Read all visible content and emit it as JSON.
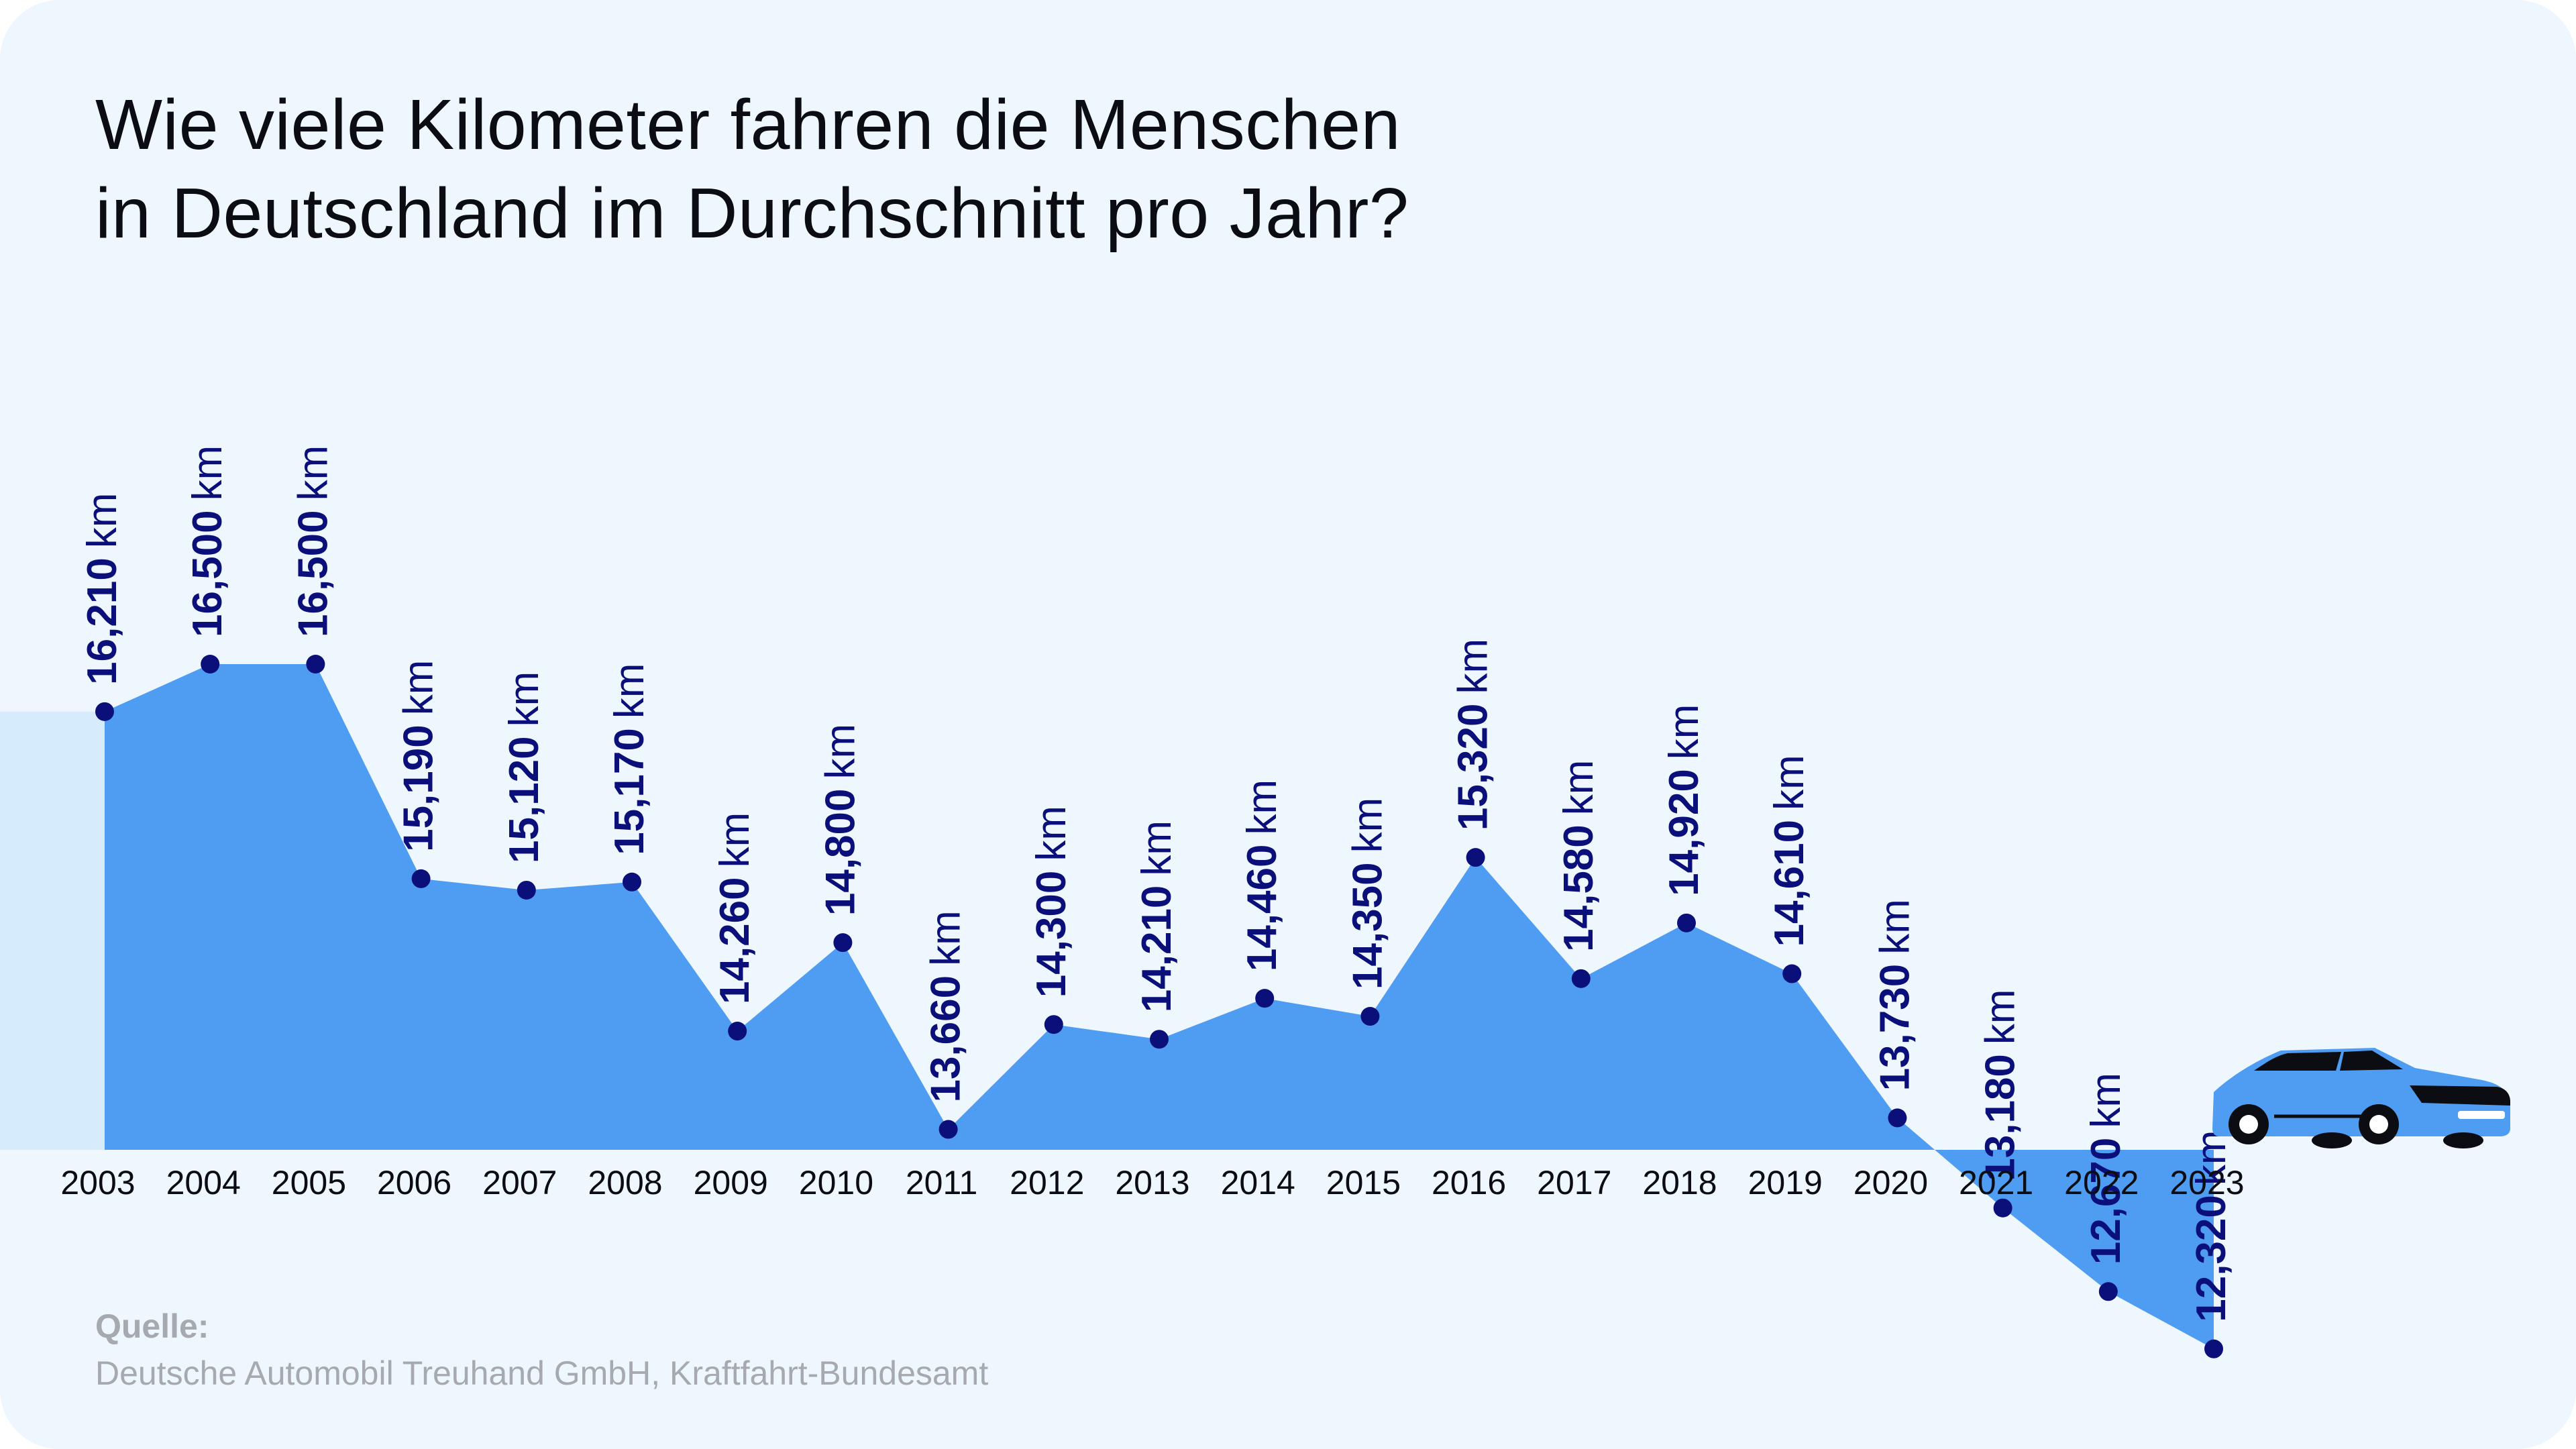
{
  "title": {
    "line1": "Wie viele Kilometer fahren die Menschen",
    "line2": "in Deutschland im Durchschnitt pro Jahr?"
  },
  "source": {
    "label": "Quelle:",
    "text": "Deutsche Automobil Treuhand GmbH, Kraftfahrt-Bundesamt"
  },
  "colors": {
    "card_background": "#eef6fe",
    "band": "#d6ecfc",
    "area": "#4f9df2",
    "point": "#0a0f7a",
    "label": "#0a0f7a",
    "axis_text": "#0c0d12",
    "car_body": "#4f9df2",
    "car_dark": "#0c0d12"
  },
  "chart_data": {
    "type": "area",
    "title": "Wie viele Kilometer fahren die Menschen in Deutschland im Durchschnitt pro Jahr?",
    "xlabel": "",
    "ylabel": "",
    "unit": "km",
    "categories": [
      "2003",
      "2004",
      "2005",
      "2006",
      "2007",
      "2008",
      "2009",
      "2010",
      "2011",
      "2012",
      "2013",
      "2014",
      "2015",
      "2016",
      "2017",
      "2018",
      "2019",
      "2020",
      "2021",
      "2022",
      "2023"
    ],
    "values": [
      16210,
      16500,
      16500,
      15190,
      15120,
      15170,
      14260,
      14800,
      13660,
      14300,
      14210,
      14460,
      14350,
      15320,
      14580,
      14920,
      14610,
      13730,
      13180,
      12670,
      12320
    ],
    "labels": [
      "16,210 km",
      "16,500 km",
      "16,500 km",
      "15,190 km",
      "15,120 km",
      "15,170 km",
      "14,260 km",
      "14,800 km",
      "13,660 km",
      "14,300 km",
      "14,210 km",
      "14,460 km",
      "14,350 km",
      "15,320 km",
      "14,580 km",
      "14,920 km",
      "14,610 km",
      "13,730 km",
      "13,180 km",
      "12,670 km",
      "12,320 km"
    ],
    "ylim": [
      0,
      16500
    ],
    "grid": false,
    "legend": "none"
  }
}
